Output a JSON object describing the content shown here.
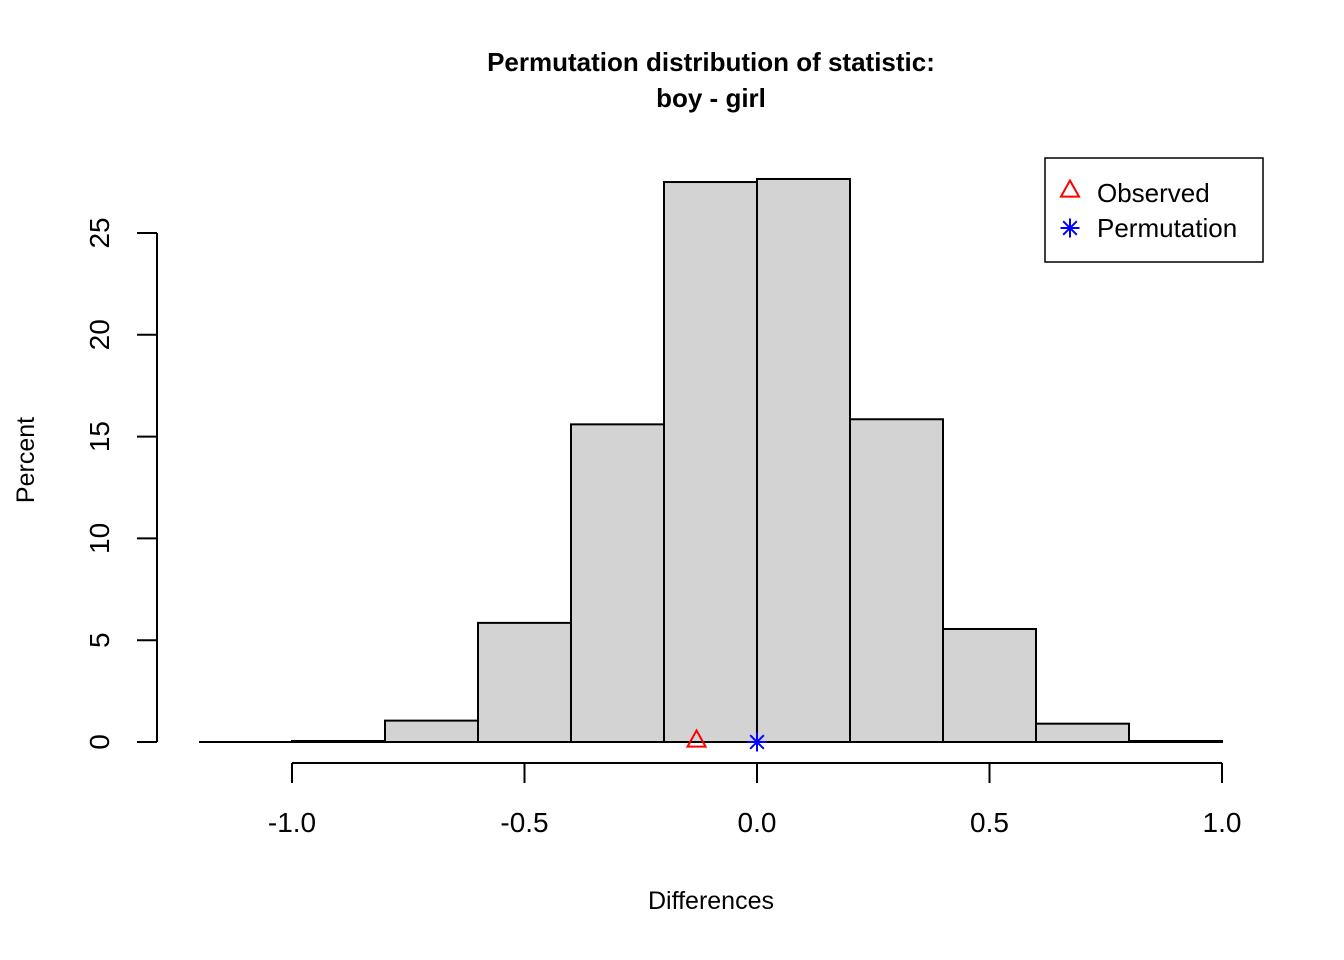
{
  "chart_data": {
    "type": "bar",
    "title": "Permutation distribution of statistic:",
    "subtitle": "boy - girl",
    "xlabel": "Differences",
    "ylabel": "Percent",
    "xlim": [
      -1.2,
      1.0
    ],
    "ylim": [
      0,
      27.6
    ],
    "x_ticks": [
      "-1.0",
      "-0.5",
      "0.0",
      "0.5",
      "1.0"
    ],
    "y_ticks": [
      "0",
      "5",
      "10",
      "15",
      "20",
      "25"
    ],
    "bins": [
      {
        "from": -1.2,
        "to": -1.0,
        "value": 0.0
      },
      {
        "from": -1.0,
        "to": -0.8,
        "value": 0.05
      },
      {
        "from": -0.8,
        "to": -0.6,
        "value": 1.05
      },
      {
        "from": -0.6,
        "to": -0.4,
        "value": 5.85
      },
      {
        "from": -0.4,
        "to": -0.2,
        "value": 15.6
      },
      {
        "from": -0.2,
        "to": 0.0,
        "value": 27.5
      },
      {
        "from": 0.0,
        "to": 0.2,
        "value": 27.65
      },
      {
        "from": 0.2,
        "to": 0.4,
        "value": 15.85
      },
      {
        "from": 0.4,
        "to": 0.6,
        "value": 5.55
      },
      {
        "from": 0.6,
        "to": 0.8,
        "value": 0.9
      },
      {
        "from": 0.8,
        "to": 1.0,
        "value": 0.05
      }
    ],
    "bar_color": "#d3d3d3",
    "markers": [
      {
        "name": "Observed",
        "x": -0.13,
        "y": 0,
        "shape": "triangle",
        "color": "#ff0000"
      },
      {
        "name": "Permutation",
        "x": 0.0,
        "y": 0,
        "shape": "asterisk",
        "color": "#0000ff"
      }
    ],
    "legend": {
      "position": "top-right",
      "entries": [
        {
          "label": "Observed",
          "shape": "triangle",
          "color": "#ff0000"
        },
        {
          "label": "Permutation",
          "shape": "asterisk",
          "color": "#0000ff"
        }
      ]
    },
    "grid": false
  }
}
